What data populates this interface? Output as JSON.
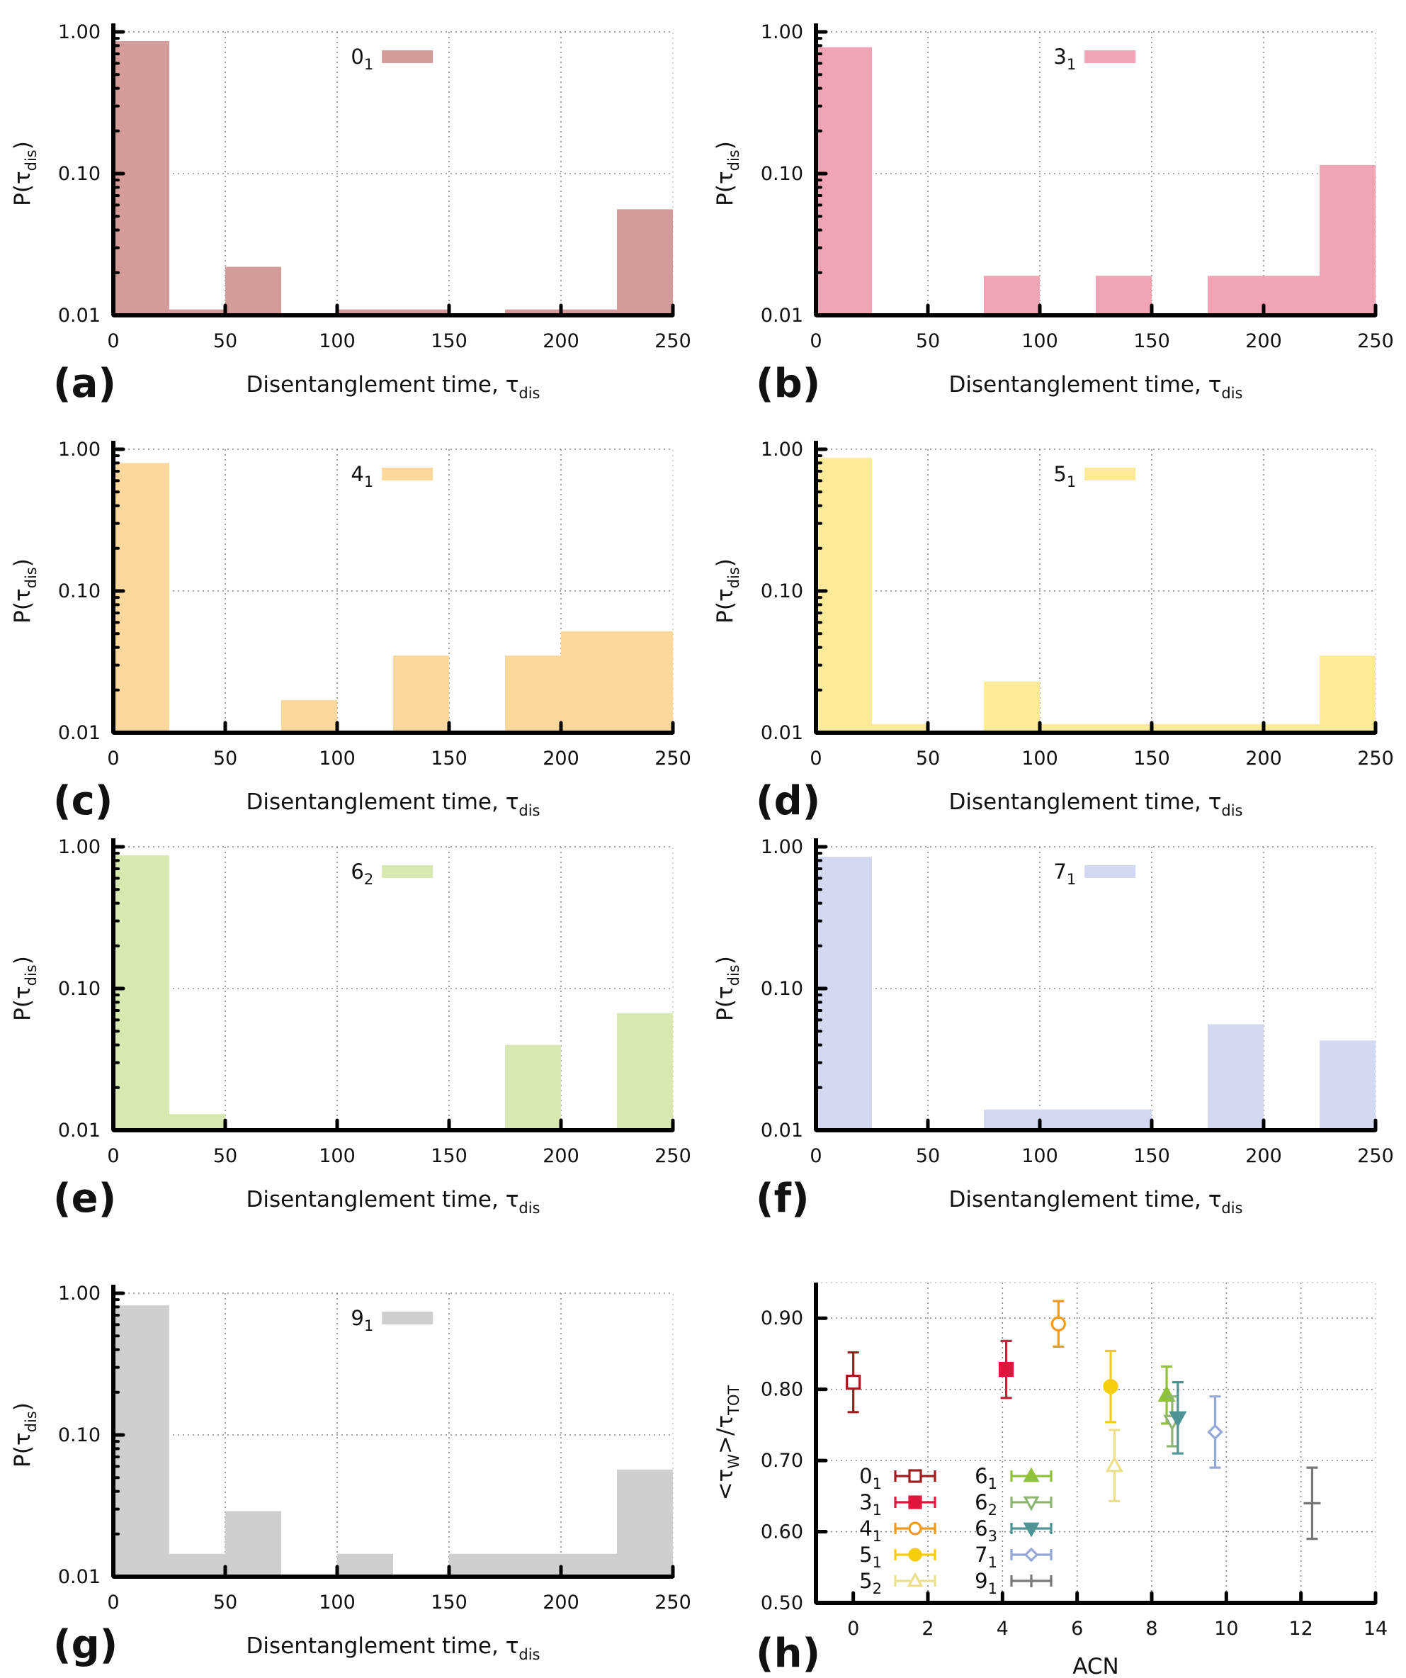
{
  "chart_data": [
    {
      "id": "a",
      "panel_label": "(a)",
      "type": "bar",
      "scale": "log",
      "xlabel": "Disentanglement time, τ",
      "xlabel_sub": "dis",
      "ylabel": "P(τ",
      "ylabel_sub": "dis",
      "ylabel_close": ")",
      "xlim": [
        0,
        250
      ],
      "ylim": [
        0.01,
        1.0
      ],
      "xticks": [
        "0",
        "50",
        "100",
        "150",
        "200",
        "250"
      ],
      "yticks": [
        "0.01",
        "0.10",
        "1.00"
      ],
      "legend_main": "0",
      "legend_sub": "1",
      "color": "#d49b9b",
      "bin_width": 25,
      "bins": [
        0,
        25,
        50,
        75,
        100,
        125,
        150,
        175,
        200,
        225
      ],
      "values": [
        0.86,
        0.011,
        0.022,
        0.01,
        0.011,
        0.011,
        0.01,
        0.011,
        0.011,
        0.056
      ]
    },
    {
      "id": "b",
      "panel_label": "(b)",
      "type": "bar",
      "scale": "log",
      "xlabel": "Disentanglement time, τ",
      "xlabel_sub": "dis",
      "ylabel": "P(τ",
      "ylabel_sub": "dis",
      "ylabel_close": ")",
      "xlim": [
        0,
        250
      ],
      "ylim": [
        0.01,
        1.0
      ],
      "xticks": [
        "0",
        "50",
        "100",
        "150",
        "200",
        "250"
      ],
      "yticks": [
        "0.01",
        "0.10",
        "1.00"
      ],
      "legend_main": "3",
      "legend_sub": "1",
      "color": "#f0a4b4",
      "bin_width": 25,
      "bins": [
        0,
        25,
        50,
        75,
        100,
        125,
        150,
        175,
        200,
        225
      ],
      "values": [
        0.78,
        0.01,
        0.01,
        0.019,
        0.01,
        0.019,
        0.01,
        0.019,
        0.019,
        0.115
      ]
    },
    {
      "id": "c",
      "panel_label": "(c)",
      "type": "bar",
      "scale": "log",
      "xlabel": "Disentanglement time, τ",
      "xlabel_sub": "dis",
      "ylabel": "P(τ",
      "ylabel_sub": "dis",
      "ylabel_close": ")",
      "xlim": [
        0,
        250
      ],
      "ylim": [
        0.01,
        1.0
      ],
      "xticks": [
        "0",
        "50",
        "100",
        "150",
        "200",
        "250"
      ],
      "yticks": [
        "0.01",
        "0.10",
        "1.00"
      ],
      "legend_main": "4",
      "legend_sub": "1",
      "color": "#fcd89d",
      "bin_width": 25,
      "bins": [
        0,
        25,
        50,
        75,
        100,
        125,
        150,
        175,
        200,
        225
      ],
      "values": [
        0.8,
        0.01,
        0.01,
        0.017,
        0.01,
        0.035,
        0.01,
        0.035,
        0.052,
        0.052
      ]
    },
    {
      "id": "d",
      "panel_label": "(d)",
      "type": "bar",
      "scale": "log",
      "xlabel": "Disentanglement time, τ",
      "xlabel_sub": "dis",
      "ylabel": "P(τ",
      "ylabel_sub": "dis",
      "ylabel_close": ")",
      "xlim": [
        0,
        250
      ],
      "ylim": [
        0.01,
        1.0
      ],
      "xticks": [
        "0",
        "50",
        "100",
        "150",
        "200",
        "250"
      ],
      "yticks": [
        "0.01",
        "0.10",
        "1.00"
      ],
      "legend_main": "5",
      "legend_sub": "1",
      "color": "#fdeb9a",
      "bin_width": 25,
      "bins": [
        0,
        25,
        50,
        75,
        100,
        125,
        150,
        175,
        200,
        225
      ],
      "values": [
        0.87,
        0.0115,
        0.01,
        0.023,
        0.0115,
        0.0115,
        0.0115,
        0.0115,
        0.0115,
        0.035
      ]
    },
    {
      "id": "e",
      "panel_label": "(e)",
      "type": "bar",
      "scale": "log",
      "xlabel": "Disentanglement time, τ",
      "xlabel_sub": "dis",
      "ylabel": "P(τ",
      "ylabel_sub": "dis",
      "ylabel_close": ")",
      "xlim": [
        0,
        250
      ],
      "ylim": [
        0.01,
        1.0
      ],
      "xticks": [
        "0",
        "50",
        "100",
        "150",
        "200",
        "250"
      ],
      "yticks": [
        "0.01",
        "0.10",
        "1.00"
      ],
      "legend_main": "6",
      "legend_sub": "2",
      "color": "#d7e9b1",
      "bin_width": 25,
      "bins": [
        0,
        25,
        50,
        75,
        100,
        125,
        150,
        175,
        200,
        225
      ],
      "values": [
        0.87,
        0.013,
        0.01,
        0.01,
        0.01,
        0.01,
        0.01,
        0.04,
        0.01,
        0.067
      ]
    },
    {
      "id": "f",
      "panel_label": "(f)",
      "type": "bar",
      "scale": "log",
      "xlabel": "Disentanglement time, τ",
      "xlabel_sub": "dis",
      "ylabel": "P(τ",
      "ylabel_sub": "dis",
      "ylabel_close": ")",
      "xlim": [
        0,
        250
      ],
      "ylim": [
        0.01,
        1.0
      ],
      "xticks": [
        "0",
        "50",
        "100",
        "150",
        "200",
        "250"
      ],
      "yticks": [
        "0.01",
        "0.10",
        "1.00"
      ],
      "legend_main": "7",
      "legend_sub": "1",
      "color": "#d2d9f0",
      "bin_width": 25,
      "bins": [
        0,
        25,
        50,
        75,
        100,
        125,
        150,
        175,
        200,
        225
      ],
      "values": [
        0.85,
        0.01,
        0.01,
        0.014,
        0.014,
        0.014,
        0.01,
        0.056,
        0.01,
        0.043
      ]
    },
    {
      "id": "g",
      "panel_label": "(g)",
      "type": "bar",
      "scale": "log",
      "xlabel": "Disentanglement time, τ",
      "xlabel_sub": "dis",
      "ylabel": "P(τ",
      "ylabel_sub": "dis",
      "ylabel_close": ")",
      "xlim": [
        0,
        250
      ],
      "ylim": [
        0.01,
        1.0
      ],
      "xticks": [
        "0",
        "50",
        "100",
        "150",
        "200",
        "250"
      ],
      "yticks": [
        "0.01",
        "0.10",
        "1.00"
      ],
      "legend_main": "9",
      "legend_sub": "1",
      "color": "#cfcfcf",
      "bin_width": 25,
      "bins": [
        0,
        25,
        50,
        75,
        100,
        125,
        150,
        175,
        200,
        225
      ],
      "values": [
        0.82,
        0.0145,
        0.029,
        0.01,
        0.0145,
        0.01,
        0.0145,
        0.0145,
        0.0145,
        0.057
      ]
    },
    {
      "id": "h",
      "panel_label": "(h)",
      "type": "scatter",
      "xlabel": "ACN",
      "ylabel": "<τ",
      "ylabel_sub1": "W",
      "ylabel_mid": ">/τ",
      "ylabel_sub2": "TOT",
      "xlim": [
        -1,
        14
      ],
      "ylim": [
        0.5,
        0.95
      ],
      "xticks": [
        0,
        2,
        4,
        6,
        8,
        10,
        12,
        14
      ],
      "yticks": [
        0.5,
        0.6,
        0.7,
        0.8,
        0.9
      ],
      "ytick_labels": [
        "0.50",
        "0.60",
        "0.70",
        "0.80",
        "0.90"
      ],
      "points": [
        {
          "knot": "0",
          "sub": "1",
          "x": 0.0,
          "y": 0.81,
          "err": 0.042,
          "color": "#a11d1d",
          "marker": "square",
          "filled": false
        },
        {
          "knot": "3",
          "sub": "1",
          "x": 4.1,
          "y": 0.828,
          "err": 0.04,
          "color": "#e0163e",
          "marker": "square",
          "filled": true
        },
        {
          "knot": "4",
          "sub": "1",
          "x": 5.5,
          "y": 0.892,
          "err": 0.032,
          "color": "#f29a1c",
          "marker": "circle",
          "filled": false
        },
        {
          "knot": "5",
          "sub": "1",
          "x": 6.9,
          "y": 0.804,
          "err": 0.05,
          "color": "#f5cd0b",
          "marker": "circle",
          "filled": true
        },
        {
          "knot": "5",
          "sub": "2",
          "x": 7.0,
          "y": 0.693,
          "err": 0.05,
          "color": "#ede08b",
          "marker": "triangle-up",
          "filled": false
        },
        {
          "knot": "6",
          "sub": "1",
          "x": 8.4,
          "y": 0.792,
          "err": 0.04,
          "color": "#8fc23a",
          "marker": "triangle-up",
          "filled": true
        },
        {
          "knot": "6",
          "sub": "2",
          "x": 8.55,
          "y": 0.755,
          "err": 0.035,
          "color": "#8fb574",
          "marker": "triangle-down",
          "filled": false
        },
        {
          "knot": "6",
          "sub": "3",
          "x": 8.7,
          "y": 0.76,
          "err": 0.05,
          "color": "#4e9494",
          "marker": "triangle-down",
          "filled": true
        },
        {
          "knot": "7",
          "sub": "1",
          "x": 9.7,
          "y": 0.74,
          "err": 0.05,
          "color": "#96a8d6",
          "marker": "diamond",
          "filled": false
        },
        {
          "knot": "9",
          "sub": "1",
          "x": 12.3,
          "y": 0.64,
          "err": 0.05,
          "color": "#777777",
          "marker": "none",
          "filled": false
        }
      ]
    }
  ]
}
